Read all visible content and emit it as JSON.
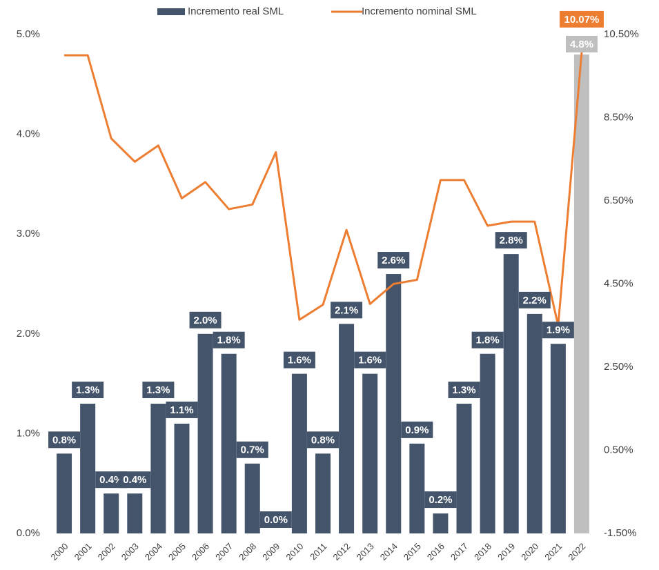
{
  "chart_data": {
    "type": "bar",
    "categories": [
      "2000",
      "2001",
      "2002",
      "2003",
      "2004",
      "2005",
      "2006",
      "2007",
      "2008",
      "2009",
      "2010",
      "2011",
      "2012",
      "2013",
      "2014",
      "2015",
      "2016",
      "2017",
      "2018",
      "2019",
      "2020",
      "2021",
      "2022"
    ],
    "series": [
      {
        "name": "Incremento real SML",
        "type": "bar",
        "color": "#44546a",
        "colors": [
          "#44546a",
          "#44546a",
          "#44546a",
          "#44546a",
          "#44546a",
          "#44546a",
          "#44546a",
          "#44546a",
          "#44546a",
          "#44546a",
          "#44546a",
          "#44546a",
          "#44546a",
          "#44546a",
          "#44546a",
          "#44546a",
          "#44546a",
          "#44546a",
          "#44546a",
          "#44546a",
          "#44546a",
          "#44546a",
          "#bfbfbf"
        ],
        "values": [
          0.8,
          1.3,
          0.4,
          0.4,
          1.3,
          1.1,
          2.0,
          1.8,
          0.7,
          0.0,
          1.6,
          0.8,
          2.1,
          1.6,
          2.6,
          0.9,
          0.2,
          1.3,
          1.8,
          2.8,
          2.2,
          1.9,
          4.8
        ],
        "value_labels": [
          "0.8%",
          "1.3%",
          "0.4%",
          "0.4%",
          "1.3%",
          "1.1%",
          "2.0%",
          "1.8%",
          "0.7%",
          "0.0%",
          "1.6%",
          "0.8%",
          "2.1%",
          "1.6%",
          "2.6%",
          "0.9%",
          "0.2%",
          "1.3%",
          "1.8%",
          "2.8%",
          "2.2%",
          "1.9%",
          "4.8%"
        ]
      },
      {
        "name": "Incremento nominal SML",
        "type": "line",
        "axis": "y2",
        "color": "#ed7d31",
        "values": [
          10.0,
          10.0,
          8.0,
          7.44,
          7.83,
          6.56,
          6.95,
          6.3,
          6.41,
          7.67,
          3.64,
          4.0,
          5.8,
          4.02,
          4.5,
          4.6,
          7.0,
          7.0,
          5.9,
          6.0,
          6.0,
          3.5,
          10.07
        ],
        "value_labels": [
          null,
          null,
          null,
          null,
          null,
          null,
          null,
          null,
          null,
          null,
          null,
          null,
          null,
          null,
          null,
          null,
          null,
          null,
          null,
          null,
          null,
          null,
          "10.07%"
        ]
      }
    ],
    "ylim": [
      0,
      5
    ],
    "yticks": [
      {
        "value": 0,
        "label": "0.0%"
      },
      {
        "value": 1,
        "label": "1.0%"
      },
      {
        "value": 2,
        "label": "2.0%"
      },
      {
        "value": 3,
        "label": "3.0%"
      },
      {
        "value": 4,
        "label": "4.0%"
      },
      {
        "value": 5,
        "label": "5.0%"
      }
    ],
    "y2lim": [
      -1.5,
      10.5
    ],
    "y2ticks": [
      {
        "value": -1.5,
        "label": "-1.50%"
      },
      {
        "value": 0.5,
        "label": "0.50%"
      },
      {
        "value": 2.5,
        "label": "2.50%"
      },
      {
        "value": 4.5,
        "label": "4.50%"
      },
      {
        "value": 6.5,
        "label": "6.50%"
      },
      {
        "value": 8.5,
        "label": "8.50%"
      },
      {
        "value": 10.5,
        "label": "10.50%"
      }
    ],
    "legend": "top",
    "grid": false
  }
}
